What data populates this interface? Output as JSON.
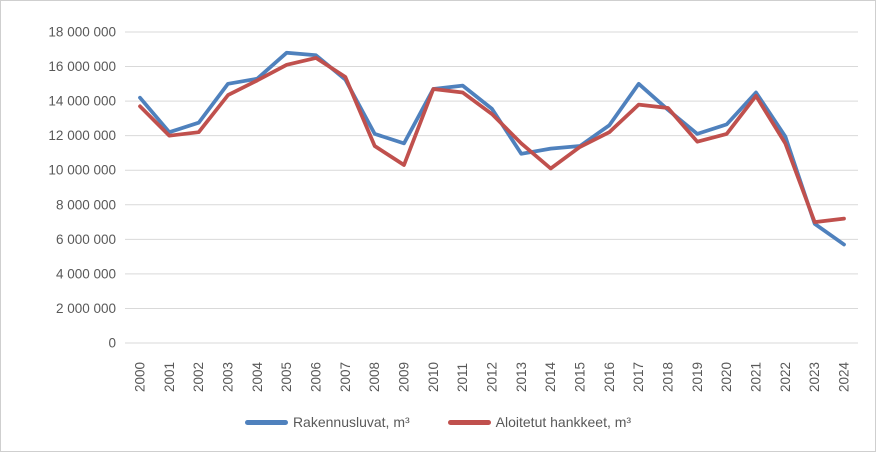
{
  "chart_data": {
    "type": "line",
    "title": "",
    "xlabel": "",
    "ylabel": "",
    "categories": [
      "2000",
      "2001",
      "2002",
      "2003",
      "2004",
      "2005",
      "2006",
      "2007",
      "2008",
      "2009",
      "2010",
      "2011",
      "2012",
      "2013",
      "2014",
      "2015",
      "2016",
      "2017",
      "2018",
      "2019",
      "2020",
      "2021",
      "2022",
      "2023",
      "2024"
    ],
    "series": [
      {
        "name": "Rakennusluvat, m³",
        "color": "#4F81BD",
        "values": [
          14200000,
          12200000,
          12750000,
          15000000,
          15300000,
          16800000,
          16650000,
          15250000,
          12100000,
          11550000,
          14700000,
          14900000,
          13550000,
          10950000,
          11250000,
          11400000,
          12600000,
          15000000,
          13500000,
          12100000,
          12650000,
          14500000,
          11950000,
          6900000,
          5700000
        ]
      },
      {
        "name": "Aloitetut hankkeet, m³",
        "color": "#C0504D",
        "values": [
          13700000,
          12000000,
          12200000,
          14350000,
          15200000,
          16100000,
          16500000,
          15400000,
          11400000,
          10300000,
          14700000,
          14500000,
          13250000,
          11550000,
          10100000,
          11350000,
          12200000,
          13800000,
          13600000,
          11650000,
          12100000,
          14300000,
          11550000,
          7000000,
          7200000
        ]
      }
    ],
    "ylim": [
      0,
      18000000
    ],
    "ytick_step": 2000000,
    "ytick_labels": [
      "0",
      "2 000 000",
      "4 000 000",
      "6 000 000",
      "8 000 000",
      "10 000 000",
      "12 000 000",
      "14 000 000",
      "16 000 000",
      "18 000 000"
    ],
    "grid": true,
    "legend_position": "bottom",
    "x_labels_rotated": "90-degrees-bottom-to-top",
    "axis_text_color": "#595959",
    "gridline_color": "#D9D9D9",
    "background_color": "#FFFFFF",
    "border_color": "#CFCFCF"
  }
}
